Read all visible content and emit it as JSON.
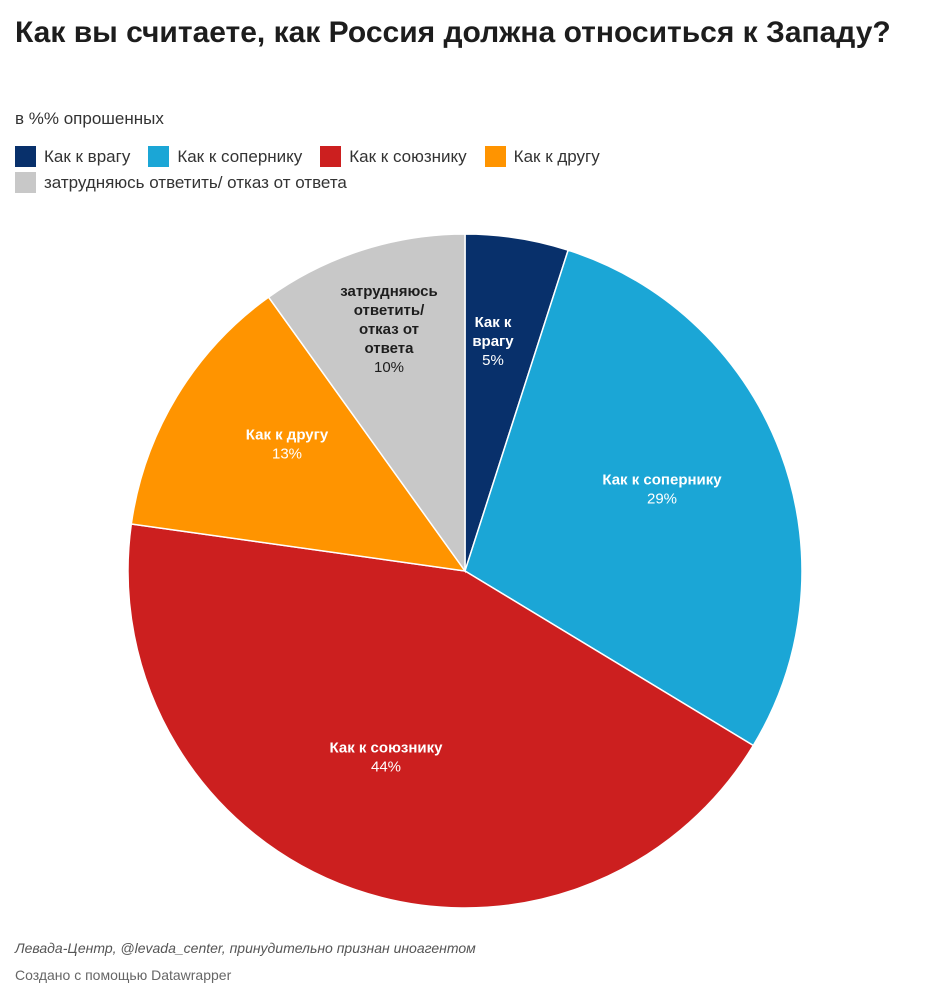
{
  "title": "Как вы считаете, как Россия должна относиться к Западу?",
  "subtitle": "в %% опрошенных",
  "source": "Левада-Центр, @levada_center, принудительно признан иноагентом",
  "credit": "Создано с помощью Datawrapper",
  "chart_data": {
    "type": "pie",
    "unit": "%",
    "slices": [
      {
        "label": "Как к врагу",
        "chart_label": [
          "Как к",
          "врагу"
        ],
        "value": 5,
        "color": "#08306b",
        "text_color": "#ffffff"
      },
      {
        "label": "Как к сопернику",
        "chart_label": [
          "Как к сопернику"
        ],
        "value": 29,
        "color": "#1ba6d6",
        "text_color": "#ffffff"
      },
      {
        "label": "Как к союзнику",
        "chart_label": [
          "Как к союзнику"
        ],
        "value": 44,
        "color": "#cc1f1f",
        "text_color": "#ffffff"
      },
      {
        "label": "Как к другу",
        "chart_label": [
          "Как к другу"
        ],
        "value": 13,
        "color": "#ff9400",
        "text_color": "#ffffff"
      },
      {
        "label": "затрудняюсь ответить/ отказ от ответа",
        "chart_label": [
          "затрудняюсь",
          "ответить/",
          "отказ от",
          "ответа"
        ],
        "value": 10,
        "color": "#c8c8c8",
        "text_color": "#1d1d1d"
      }
    ]
  }
}
